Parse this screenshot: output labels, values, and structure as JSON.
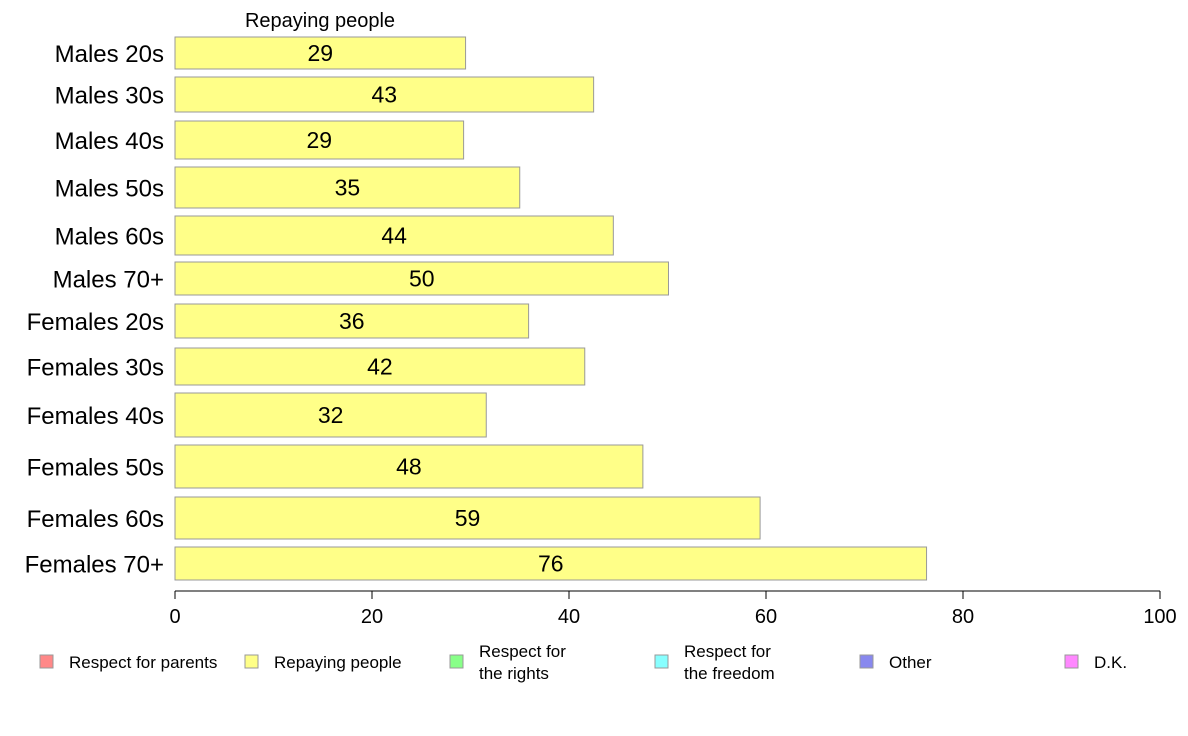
{
  "chart_data": {
    "type": "bar",
    "orientation": "horizontal",
    "title": "Repaying people",
    "categories": [
      "Males 20s",
      "Males 30s",
      "Males 40s",
      "Males 50s",
      "Males 60s",
      "Males 70+",
      "Females 20s",
      "Females 30s",
      "Females 40s",
      "Females 50s",
      "Females 60s",
      "Females 70+"
    ],
    "series": [
      {
        "name": "Repaying people",
        "color": "#ffff88",
        "values": [
          29.5,
          42.5,
          29.3,
          35.0,
          44.5,
          50.1,
          35.9,
          41.6,
          31.6,
          47.5,
          59.4,
          76.3
        ],
        "labels": [
          "29",
          "43",
          "29",
          "35",
          "44",
          "50",
          "36",
          "42",
          "32",
          "48",
          "59",
          "76"
        ]
      }
    ],
    "xlim": [
      0,
      100
    ],
    "xticks": [
      0,
      20,
      40,
      60,
      80,
      100
    ],
    "grid": false,
    "legend_position": "bottom",
    "legend": [
      {
        "lines": [
          "Respect for parents"
        ],
        "color": "#ff8888"
      },
      {
        "lines": [
          "Repaying people"
        ],
        "color": "#ffff88"
      },
      {
        "lines": [
          "Respect for",
          "the rights"
        ],
        "color": "#88ff88"
      },
      {
        "lines": [
          "Respect for",
          "the freedom"
        ],
        "color": "#88ffff"
      },
      {
        "lines": [
          "Other"
        ],
        "color": "#8888ee"
      },
      {
        "lines": [
          "D.K."
        ],
        "color": "#ff88ff"
      }
    ]
  }
}
